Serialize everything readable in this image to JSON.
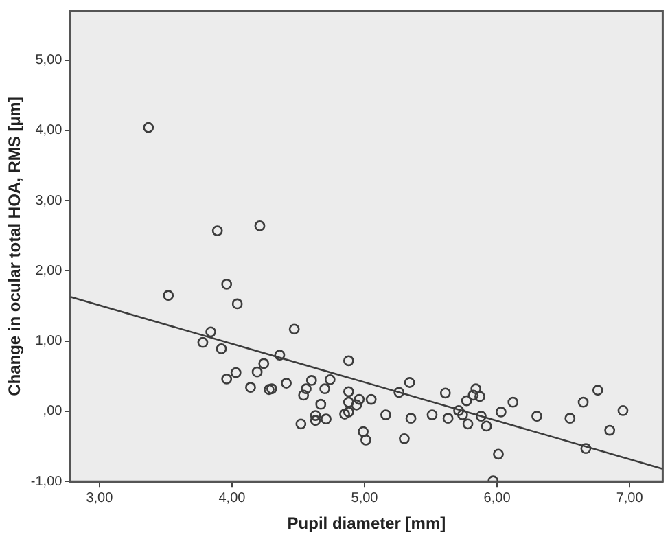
{
  "chart_data": {
    "type": "scatter",
    "xlabel": "Pupil diameter [mm]",
    "ylabel": "Change in ocular total HOA, RMS [µm]",
    "xlim": [
      2.78,
      7.25
    ],
    "ylim": [
      -1,
      5.7
    ],
    "xticks": [
      {
        "value": 3,
        "label": "3,00"
      },
      {
        "value": 4,
        "label": "4,00"
      },
      {
        "value": 5,
        "label": "5,00"
      },
      {
        "value": 6,
        "label": "6,00"
      },
      {
        "value": 7,
        "label": "7,00"
      }
    ],
    "yticks": [
      {
        "value": -1,
        "label": "-1,00"
      },
      {
        "value": 0,
        "label": ",00"
      },
      {
        "value": 1,
        "label": "1,00"
      },
      {
        "value": 2,
        "label": "2,00"
      },
      {
        "value": 3,
        "label": "3,00"
      },
      {
        "value": 4,
        "label": "4,00"
      },
      {
        "value": 5,
        "label": "5,00"
      }
    ],
    "grid": false,
    "legend": false,
    "series": [
      {
        "type": "scatter",
        "color": "#3c3c3c",
        "marker": "circle",
        "x": [
          3.37,
          3.89,
          4.21,
          3.52,
          3.96,
          4.04,
          3.84,
          3.78,
          3.92,
          4.47,
          4.36,
          4.88,
          4.24,
          4.19,
          4.03,
          3.96,
          4.14,
          4.28,
          4.3,
          4.41,
          4.6,
          4.74,
          4.56,
          4.54,
          4.7,
          4.67,
          4.88,
          4.96,
          5.05,
          4.88,
          4.94,
          4.88,
          4.85,
          4.63,
          4.63,
          4.71,
          4.52,
          4.99,
          5.01,
          5.16,
          5.34,
          5.26,
          5.35,
          5.3,
          5.61,
          5.51,
          5.63,
          5.71,
          5.74,
          5.78,
          5.77,
          5.82,
          5.84,
          5.87,
          5.88,
          5.92,
          6.03,
          6.12,
          6.01,
          5.97,
          6.3,
          6.55,
          6.65,
          6.76,
          6.67,
          6.85,
          6.95
        ],
        "values": [
          4.04,
          2.57,
          2.64,
          1.65,
          1.81,
          1.53,
          1.13,
          0.98,
          0.89,
          1.17,
          0.8,
          0.72,
          0.68,
          0.56,
          0.55,
          0.46,
          0.34,
          0.31,
          0.32,
          0.4,
          0.44,
          0.45,
          0.32,
          0.23,
          0.32,
          0.1,
          0.28,
          0.17,
          0.17,
          0.13,
          0.09,
          -0.01,
          -0.04,
          -0.06,
          -0.13,
          -0.11,
          -0.18,
          -0.29,
          -0.41,
          -0.05,
          0.41,
          0.27,
          -0.1,
          -0.39,
          0.26,
          -0.05,
          -0.1,
          0.01,
          -0.05,
          -0.18,
          0.15,
          0.23,
          0.32,
          0.21,
          -0.07,
          -0.21,
          -0.01,
          0.13,
          -0.61,
          -0.99,
          -0.07,
          -0.1,
          0.13,
          0.3,
          -0.53,
          -0.27,
          0.01
        ]
      },
      {
        "type": "line",
        "color": "#3c3c3c",
        "marker": "none",
        "line_style": "solid",
        "x": [
          2.78,
          7.25
        ],
        "values": [
          1.63,
          -0.82
        ]
      }
    ]
  }
}
